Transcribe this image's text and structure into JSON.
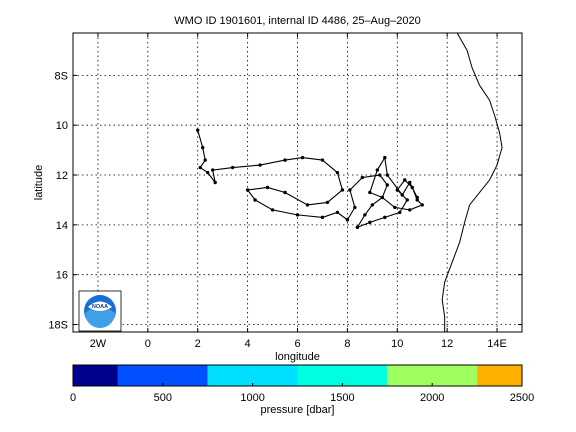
{
  "chart_data": {
    "type": "scatter",
    "title": "WMO ID 1901601, internal ID 4486, 25–Aug–2020",
    "xlabel": "longitude",
    "ylabel": "latitude",
    "xlim": [
      -3,
      15
    ],
    "ylim": [
      18.3,
      6.3
    ],
    "x_ticks": [
      -2,
      0,
      2,
      4,
      6,
      8,
      10,
      12,
      14
    ],
    "x_tick_labels": [
      "2W",
      "0",
      "2",
      "4",
      "6",
      "8",
      "10",
      "12",
      "14E"
    ],
    "y_ticks": [
      8,
      10,
      12,
      14,
      16,
      18
    ],
    "y_tick_labels": [
      "8S",
      "10",
      "12",
      "14",
      "16",
      "18S"
    ],
    "grid": true,
    "float_track": [
      [
        2.0,
        10.2
      ],
      [
        2.2,
        10.9
      ],
      [
        2.3,
        11.4
      ],
      [
        2.1,
        11.7
      ],
      [
        2.4,
        11.9
      ],
      [
        2.7,
        12.3
      ],
      [
        2.6,
        11.8
      ],
      [
        3.4,
        11.7
      ],
      [
        4.5,
        11.6
      ],
      [
        5.5,
        11.4
      ],
      [
        6.2,
        11.3
      ],
      [
        7.0,
        11.4
      ],
      [
        7.6,
        11.9
      ],
      [
        7.8,
        12.6
      ],
      [
        7.2,
        13.1
      ],
      [
        6.4,
        13.2
      ],
      [
        5.5,
        12.7
      ],
      [
        4.8,
        12.5
      ],
      [
        4.0,
        12.6
      ],
      [
        4.3,
        13.0
      ],
      [
        5.0,
        13.4
      ],
      [
        6.0,
        13.6
      ],
      [
        7.0,
        13.7
      ],
      [
        7.6,
        13.5
      ],
      [
        8.0,
        13.8
      ],
      [
        8.3,
        13.3
      ],
      [
        8.1,
        12.6
      ],
      [
        8.6,
        12.1
      ],
      [
        9.3,
        12.0
      ],
      [
        9.6,
        12.4
      ],
      [
        9.4,
        12.9
      ],
      [
        9.0,
        13.2
      ],
      [
        8.7,
        13.6
      ],
      [
        8.4,
        14.1
      ],
      [
        8.9,
        13.9
      ],
      [
        9.5,
        13.7
      ],
      [
        10.1,
        13.5
      ],
      [
        10.4,
        13.0
      ],
      [
        10.0,
        12.6
      ],
      [
        10.3,
        12.2
      ],
      [
        10.6,
        12.5
      ],
      [
        10.8,
        13.0
      ],
      [
        11.0,
        13.2
      ],
      [
        10.5,
        13.4
      ],
      [
        9.9,
        13.3
      ],
      [
        9.4,
        12.9
      ],
      [
        8.9,
        12.7
      ],
      [
        9.2,
        11.8
      ],
      [
        9.5,
        11.3
      ],
      [
        9.6,
        12.0
      ],
      [
        10.2,
        12.8
      ],
      [
        10.5,
        12.3
      ],
      [
        10.8,
        12.9
      ]
    ],
    "colorbar": {
      "label": "pressure [dbar]",
      "ticks": [
        0,
        500,
        1000,
        1500,
        2000,
        2500
      ],
      "bins": [
        {
          "from": 0,
          "to": 250,
          "color": "#00008f"
        },
        {
          "from": 250,
          "to": 750,
          "color": "#0050ff"
        },
        {
          "from": 750,
          "to": 1250,
          "color": "#00dfff"
        },
        {
          "from": 1250,
          "to": 1750,
          "color": "#00ffdf"
        },
        {
          "from": 1750,
          "to": 2250,
          "color": "#9fff5f"
        },
        {
          "from": 2250,
          "to": 2500,
          "color": "#ffaf00"
        }
      ]
    }
  },
  "logo": {
    "text": "NOAA",
    "name": "noaa-logo"
  }
}
